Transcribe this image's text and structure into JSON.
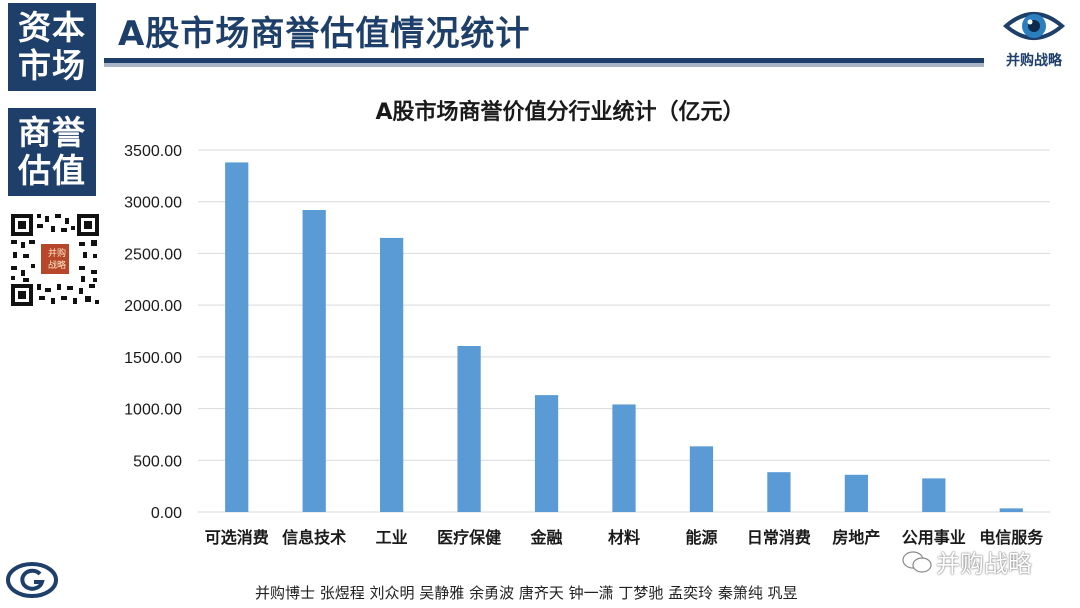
{
  "sidebar": {
    "top_block": [
      "资本",
      "市场"
    ],
    "mid_block": [
      "商誉",
      "估值"
    ],
    "qr_caption": [
      "并购",
      "战略"
    ]
  },
  "header": {
    "title": "A股市场商誉估值情况统计",
    "brand_name": "并购战略"
  },
  "footer": {
    "authors": "并购博士 张煜程 刘众明 吴静雅 余勇波 唐齐天 钟一潇 丁梦驰 孟奕玲 秦箫纯 巩昱",
    "watermark": "并购战略"
  },
  "colors": {
    "brand_navy": "#1f3f6b",
    "bar": "#5b9bd5",
    "grid": "#d9d9d9"
  },
  "chart_data": {
    "type": "bar",
    "title": "A股市场商誉价值分行业统计（亿元）",
    "xlabel": "",
    "ylabel": "",
    "categories": [
      "可选消费",
      "信息技术",
      "工业",
      "医疗保健",
      "金融",
      "材料",
      "能源",
      "日常消费",
      "房地产",
      "公用事业",
      "电信服务"
    ],
    "values": [
      3380,
      2920,
      2650,
      1605,
      1130,
      1040,
      635,
      385,
      360,
      325,
      35
    ],
    "ylim": [
      0,
      3500
    ],
    "yticks": [
      "0.00",
      "500.00",
      "1000.00",
      "1500.00",
      "2000.00",
      "2500.00",
      "3000.00",
      "3500.00"
    ],
    "grid": true,
    "legend": "none"
  }
}
